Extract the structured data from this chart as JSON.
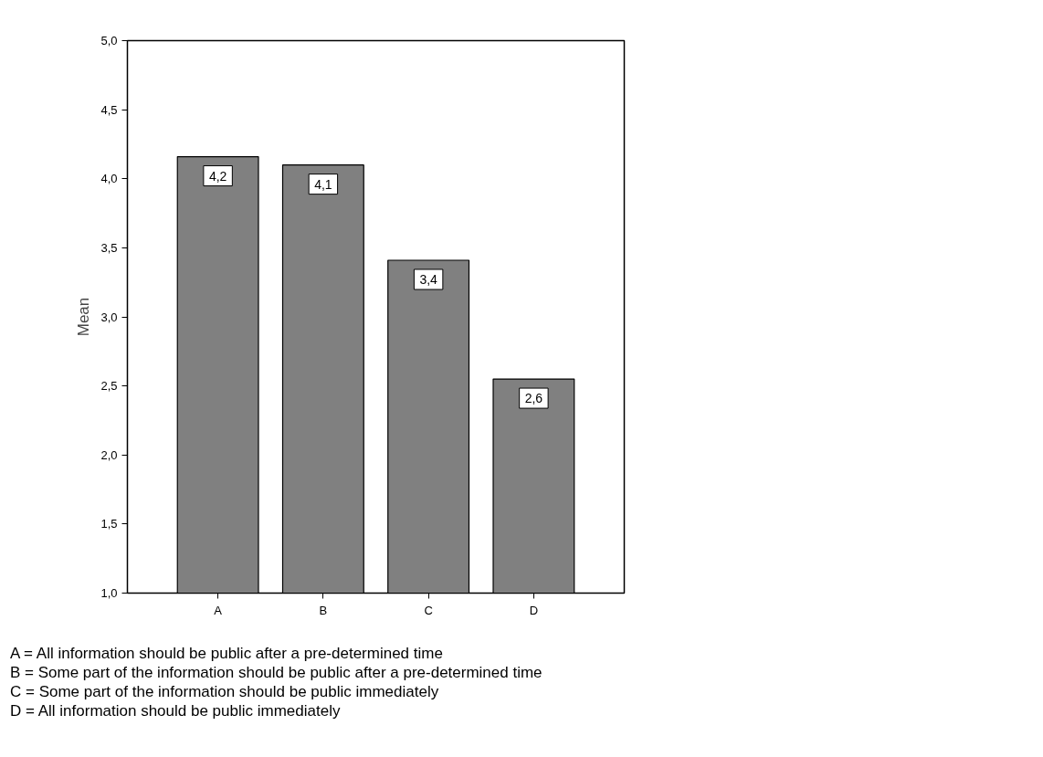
{
  "chart_data": {
    "type": "bar",
    "ylabel": "Mean",
    "categories": [
      "A",
      "B",
      "C",
      "D"
    ],
    "values": [
      4.16,
      4.1,
      3.41,
      2.55
    ],
    "value_labels": [
      "4,2",
      "4,1",
      "3,4",
      "2,6"
    ],
    "color": "#808080",
    "ylim": [
      1,
      5
    ],
    "yticks": [
      {
        "value": 1,
        "label": "1,0"
      },
      {
        "value": 1.5,
        "label": "1,5"
      },
      {
        "value": 2,
        "label": "2,0"
      },
      {
        "value": 2.5,
        "label": "2,5"
      },
      {
        "value": 3,
        "label": "3,0"
      },
      {
        "value": 3.5,
        "label": "3,5"
      },
      {
        "value": 4,
        "label": "4,0"
      },
      {
        "value": 4.5,
        "label": "4,5"
      },
      {
        "value": 5,
        "label": "5,0"
      }
    ],
    "grid": false,
    "annotations": [
      "A = All information should be public after a pre-determined time",
      "B = Some part of the information should be public after a pre-determined time",
      "C = Some part of the information should be public immediately",
      "D = All information should be public immediately"
    ]
  }
}
